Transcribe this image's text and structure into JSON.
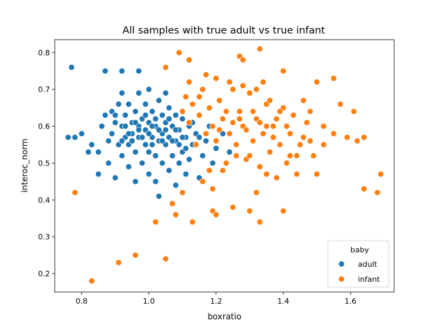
{
  "chart_data": {
    "type": "scatter",
    "title": "All samples with true adult vs true infant",
    "xlabel": "boxratio",
    "ylabel": "interoc_norm",
    "xlim": [
      0.72,
      1.73
    ],
    "ylim": [
      0.15,
      0.835
    ],
    "xticks": [
      0.8,
      1.0,
      1.2,
      1.4,
      1.6
    ],
    "yticks": [
      0.2,
      0.3,
      0.4,
      0.5,
      0.6,
      0.7,
      0.8
    ],
    "xtick_labels": [
      "0.8",
      "1.0",
      "1.2",
      "1.4",
      "1.6"
    ],
    "ytick_labels": [
      "0.2",
      "0.3",
      "0.4",
      "0.5",
      "0.6",
      "0.7",
      "0.8"
    ],
    "grid": false,
    "legend": {
      "title": "baby",
      "placement": "lower-right"
    },
    "series": [
      {
        "name": "adult",
        "color": "#1f77b4",
        "points": [
          [
            0.77,
            0.76
          ],
          [
            0.87,
            0.75
          ],
          [
            0.92,
            0.75
          ],
          [
            0.97,
            0.75
          ],
          [
            0.76,
            0.57
          ],
          [
            0.78,
            0.57
          ],
          [
            0.8,
            0.58
          ],
          [
            0.82,
            0.53
          ],
          [
            0.83,
            0.55
          ],
          [
            0.85,
            0.47
          ],
          [
            0.85,
            0.53
          ],
          [
            0.86,
            0.6
          ],
          [
            0.87,
            0.63
          ],
          [
            0.88,
            0.56
          ],
          [
            0.88,
            0.5
          ],
          [
            0.89,
            0.58
          ],
          [
            0.89,
            0.64
          ],
          [
            0.9,
            0.46
          ],
          [
            0.9,
            0.61
          ],
          [
            0.91,
            0.55
          ],
          [
            0.91,
            0.66
          ],
          [
            0.92,
            0.52
          ],
          [
            0.92,
            0.6
          ],
          [
            0.92,
            0.69
          ],
          [
            0.93,
            0.57
          ],
          [
            0.93,
            0.63
          ],
          [
            0.94,
            0.49
          ],
          [
            0.94,
            0.55
          ],
          [
            0.94,
            0.66
          ],
          [
            0.95,
            0.61
          ],
          [
            0.95,
            0.58
          ],
          [
            0.96,
            0.45
          ],
          [
            0.96,
            0.53
          ],
          [
            0.96,
            0.64
          ],
          [
            0.97,
            0.57
          ],
          [
            0.97,
            0.6
          ],
          [
            0.97,
            0.69
          ],
          [
            0.98,
            0.5
          ],
          [
            0.98,
            0.62
          ],
          [
            0.99,
            0.55
          ],
          [
            0.99,
            0.59
          ],
          [
            0.99,
            0.66
          ],
          [
            1.0,
            0.47
          ],
          [
            1.0,
            0.53
          ],
          [
            1.0,
            0.61
          ],
          [
            1.0,
            0.7
          ],
          [
            1.01,
            0.57
          ],
          [
            1.01,
            0.64
          ],
          [
            1.02,
            0.45
          ],
          [
            1.02,
            0.52
          ],
          [
            1.02,
            0.6
          ],
          [
            1.03,
            0.56
          ],
          [
            1.03,
            0.67
          ],
          [
            1.03,
            0.41
          ],
          [
            1.04,
            0.5
          ],
          [
            1.04,
            0.58
          ],
          [
            1.04,
            0.63
          ],
          [
            1.05,
            0.55
          ],
          [
            1.05,
            0.61
          ],
          [
            1.05,
            0.69
          ],
          [
            1.06,
            0.48
          ],
          [
            1.06,
            0.57
          ],
          [
            1.06,
            0.65
          ],
          [
            1.07,
            0.52
          ],
          [
            1.07,
            0.6
          ],
          [
            1.08,
            0.44
          ],
          [
            1.08,
            0.56
          ],
          [
            1.08,
            0.63
          ],
          [
            1.09,
            0.5
          ],
          [
            1.09,
            0.59
          ],
          [
            1.1,
            0.53
          ],
          [
            1.1,
            0.62
          ],
          [
            1.11,
            0.47
          ],
          [
            1.11,
            0.57
          ],
          [
            1.12,
            0.51
          ],
          [
            1.12,
            0.6
          ],
          [
            1.13,
            0.55
          ],
          [
            1.14,
            0.58
          ],
          [
            1.15,
            0.46
          ],
          [
            1.16,
            0.52
          ],
          [
            1.17,
            0.56
          ],
          [
            1.18,
            0.6
          ],
          [
            1.19,
            0.5
          ],
          [
            1.2,
            0.54
          ],
          [
            1.22,
            0.58
          ],
          [
            1.24,
            0.53
          ],
          [
            0.9,
            0.63
          ],
          [
            0.93,
            0.6
          ],
          [
            0.95,
            0.56
          ],
          [
            0.97,
            0.59
          ],
          [
            0.98,
            0.57
          ],
          [
            1.0,
            0.58
          ],
          [
            1.01,
            0.55
          ],
          [
            1.02,
            0.62
          ],
          [
            1.03,
            0.59
          ],
          [
            1.04,
            0.56
          ],
          [
            1.05,
            0.59
          ],
          [
            1.06,
            0.62
          ],
          [
            1.07,
            0.56
          ],
          [
            1.08,
            0.59
          ],
          [
            1.09,
            0.55
          ],
          [
            1.1,
            0.57
          ],
          [
            0.99,
            0.63
          ],
          [
            1.01,
            0.6
          ],
          [
            0.96,
            0.61
          ],
          [
            0.94,
            0.58
          ],
          [
            0.92,
            0.56
          ],
          [
            1.11,
            0.54
          ],
          [
            1.13,
            0.61
          ],
          [
            1.15,
            0.57
          ]
        ]
      },
      {
        "name": "infant",
        "color": "#ff7f0e",
        "points": [
          [
            0.78,
            0.42
          ],
          [
            0.83,
            0.18
          ],
          [
            0.91,
            0.23
          ],
          [
            0.96,
            0.25
          ],
          [
            1.05,
            0.24
          ],
          [
            1.02,
            0.34
          ],
          [
            1.07,
            0.39
          ],
          [
            1.08,
            0.36
          ],
          [
            1.1,
            0.42
          ],
          [
            1.13,
            0.34
          ],
          [
            1.19,
            0.37
          ],
          [
            1.2,
            0.36
          ],
          [
            1.19,
            0.43
          ],
          [
            1.25,
            0.38
          ],
          [
            1.3,
            0.37
          ],
          [
            1.33,
            0.34
          ],
          [
            1.4,
            0.37
          ],
          [
            1.32,
            0.42
          ],
          [
            1.09,
            0.8
          ],
          [
            1.12,
            0.78
          ],
          [
            1.05,
            0.76
          ],
          [
            1.17,
            0.74
          ],
          [
            1.27,
            0.79
          ],
          [
            1.33,
            0.81
          ],
          [
            1.28,
            0.78
          ],
          [
            1.4,
            0.75
          ],
          [
            1.5,
            0.72
          ],
          [
            1.55,
            0.73
          ],
          [
            1.57,
            0.66
          ],
          [
            1.61,
            0.64
          ],
          [
            1.59,
            0.57
          ],
          [
            1.62,
            0.56
          ],
          [
            1.64,
            0.57
          ],
          [
            1.68,
            0.42
          ],
          [
            1.64,
            0.43
          ],
          [
            1.69,
            0.47
          ],
          [
            1.55,
            0.58
          ],
          [
            1.52,
            0.55
          ],
          [
            1.5,
            0.47
          ],
          [
            1.49,
            0.52
          ],
          [
            1.47,
            0.61
          ],
          [
            1.45,
            0.55
          ],
          [
            1.44,
            0.47
          ],
          [
            1.43,
            0.63
          ],
          [
            1.42,
            0.58
          ],
          [
            1.41,
            0.5
          ],
          [
            1.4,
            0.65
          ],
          [
            1.39,
            0.55
          ],
          [
            1.38,
            0.46
          ],
          [
            1.37,
            0.6
          ],
          [
            1.36,
            0.53
          ],
          [
            1.35,
            0.66
          ],
          [
            1.34,
            0.58
          ],
          [
            1.33,
            0.49
          ],
          [
            1.32,
            0.62
          ],
          [
            1.31,
            0.56
          ],
          [
            1.3,
            0.69
          ],
          [
            1.29,
            0.51
          ],
          [
            1.28,
            0.6
          ],
          [
            1.27,
            0.64
          ],
          [
            1.26,
            0.55
          ],
          [
            1.25,
            0.7
          ],
          [
            1.24,
            0.58
          ],
          [
            1.23,
            0.5
          ],
          [
            1.22,
            0.62
          ],
          [
            1.21,
            0.67
          ],
          [
            1.2,
            0.56
          ],
          [
            1.19,
            0.6
          ],
          [
            1.18,
            0.65
          ],
          [
            1.17,
            0.58
          ],
          [
            1.16,
            0.7
          ],
          [
            1.15,
            0.63
          ],
          [
            1.14,
            0.55
          ],
          [
            1.13,
            0.66
          ],
          [
            1.12,
            0.61
          ],
          [
            1.11,
            0.68
          ],
          [
            1.1,
            0.64
          ],
          [
            1.12,
            0.72
          ],
          [
            1.15,
            0.68
          ],
          [
            1.2,
            0.73
          ],
          [
            1.24,
            0.72
          ],
          [
            1.28,
            0.71
          ],
          [
            1.32,
            0.7
          ],
          [
            1.36,
            0.67
          ],
          [
            1.38,
            0.62
          ],
          [
            1.41,
            0.6
          ],
          [
            1.44,
            0.52
          ],
          [
            1.46,
            0.67
          ],
          [
            1.48,
            0.64
          ],
          [
            1.52,
            0.6
          ],
          [
            1.46,
            0.57
          ],
          [
            1.22,
            0.48
          ],
          [
            1.18,
            0.48
          ],
          [
            1.16,
            0.45
          ],
          [
            1.26,
            0.52
          ],
          [
            1.3,
            0.52
          ],
          [
            1.35,
            0.47
          ],
          [
            1.37,
            0.57
          ],
          [
            1.29,
            0.59
          ],
          [
            1.27,
            0.62
          ],
          [
            1.25,
            0.61
          ],
          [
            1.23,
            0.64
          ],
          [
            1.21,
            0.59
          ],
          [
            1.33,
            0.61
          ],
          [
            1.31,
            0.64
          ],
          [
            1.35,
            0.6
          ],
          [
            1.42,
            0.52
          ],
          [
            1.39,
            0.64
          ],
          [
            1.34,
            0.72
          ],
          [
            1.48,
            0.56
          ]
        ]
      }
    ]
  }
}
